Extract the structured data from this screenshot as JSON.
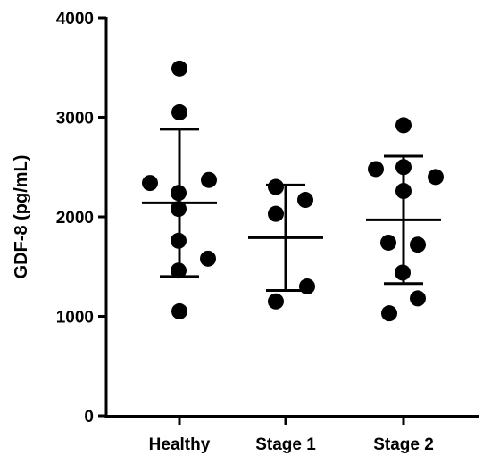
{
  "chart_data": {
    "type": "scatter",
    "ylabel": "GDF-8 (pg/mL)",
    "xlabel": "",
    "title": "",
    "ylim": [
      0,
      4000
    ],
    "yticks": [
      0,
      1000,
      2000,
      3000,
      4000
    ],
    "categories": [
      "Healthy",
      "Stage 1",
      "Stage 2"
    ],
    "groups": [
      {
        "category": "Healthy",
        "points": [
          3490,
          3050,
          2340,
          2370,
          2240,
          2080,
          1760,
          1580,
          1460,
          1050
        ],
        "mean": 2140,
        "sd_upper": 2880,
        "sd_lower": 1400
      },
      {
        "category": "Stage 1",
        "points": [
          2300,
          2170,
          2030,
          1300,
          1150
        ],
        "mean": 1790,
        "sd_upper": 2320,
        "sd_lower": 1260
      },
      {
        "category": "Stage 2",
        "points": [
          2920,
          2500,
          2480,
          2400,
          2260,
          1740,
          1720,
          1440,
          1180,
          1030
        ],
        "mean": 1970,
        "sd_upper": 2610,
        "sd_lower": 1330
      }
    ],
    "grid": false,
    "marker_color": "#000000"
  }
}
